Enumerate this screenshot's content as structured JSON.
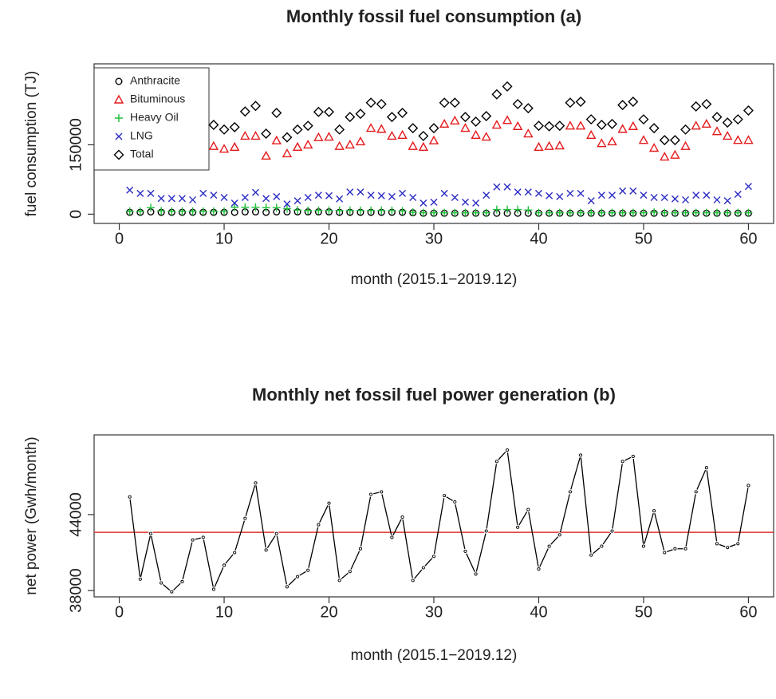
{
  "chart_data": [
    {
      "type": "scatter",
      "title": "Monthly fossil fuel consumption (a)",
      "x_label": "month (2015.1−2019.12)",
      "y_label": "fuel consumption (TJ)",
      "x": [
        1,
        2,
        3,
        4,
        5,
        6,
        7,
        8,
        9,
        10,
        11,
        12,
        13,
        14,
        15,
        16,
        17,
        18,
        19,
        20,
        21,
        22,
        23,
        24,
        25,
        26,
        27,
        28,
        29,
        30,
        31,
        32,
        33,
        34,
        35,
        36,
        37,
        38,
        39,
        40,
        41,
        42,
        43,
        44,
        45,
        46,
        47,
        48,
        49,
        50,
        51,
        52,
        53,
        54,
        55,
        56,
        57,
        58,
        59,
        60
      ],
      "xlim": [
        -2.4,
        62.4
      ],
      "xticks": [
        0,
        10,
        20,
        30,
        40,
        50,
        60
      ],
      "ylim": [
        -20000,
        325000
      ],
      "yticks": [
        0,
        150000
      ],
      "legend": "top-left",
      "series": [
        {
          "name": "Anthracite",
          "color": "#000000",
          "marker": "circle",
          "values": [
            4000,
            4000,
            5000,
            4000,
            4000,
            4000,
            4000,
            4000,
            4000,
            4000,
            4000,
            5000,
            5000,
            4000,
            5000,
            5000,
            5000,
            5000,
            5000,
            5000,
            4000,
            4000,
            4000,
            4000,
            4000,
            4000,
            4000,
            3000,
            2000,
            2000,
            2000,
            2000,
            2000,
            2000,
            2000,
            2000,
            2000,
            2000,
            2000,
            2000,
            2000,
            2000,
            2000,
            2000,
            2000,
            2000,
            2000,
            2000,
            2000,
            2000,
            2000,
            2000,
            2000,
            2000,
            2000,
            2000,
            2000,
            2000,
            2000,
            2000
          ]
        },
        {
          "name": "Bituminous",
          "color": "#e41a1c",
          "marker": "triangle",
          "values": [
            null,
            null,
            null,
            null,
            null,
            null,
            null,
            null,
            147000,
            141000,
            145000,
            169000,
            169000,
            126000,
            159000,
            131000,
            145000,
            150000,
            166000,
            167000,
            147000,
            150000,
            157000,
            186000,
            184000,
            169000,
            171000,
            147000,
            145000,
            159000,
            195000,
            202000,
            186000,
            171000,
            167000,
            193000,
            203000,
            190000,
            174000,
            145000,
            147000,
            148000,
            191000,
            191000,
            171000,
            153000,
            157000,
            184000,
            190000,
            160000,
            143000,
            124000,
            128000,
            147000,
            191000,
            195000,
            179000,
            169000,
            160000,
            160000
          ]
        },
        {
          "name": "Heavy Oil",
          "color": "#1fbf3a",
          "marker": "plus",
          "values": [
            6000,
            6000,
            14000,
            7000,
            6000,
            6000,
            6000,
            6000,
            6000,
            6000,
            15000,
            15000,
            15000,
            14000,
            14000,
            12000,
            9000,
            8000,
            8000,
            8000,
            8000,
            8000,
            8000,
            8000,
            8000,
            8000,
            7000,
            4000,
            3000,
            3000,
            3000,
            3000,
            3000,
            3000,
            3000,
            10000,
            10000,
            10000,
            9000,
            3000,
            3000,
            3000,
            3000,
            3000,
            3000,
            3000,
            3000,
            3000,
            3000,
            3000,
            4000,
            3000,
            3000,
            3000,
            3000,
            3000,
            3000,
            3000,
            3000,
            3000
          ]
        },
        {
          "name": "LNG",
          "color": "#2b2bc4",
          "marker": "x",
          "values": [
            52000,
            45000,
            45000,
            34000,
            34000,
            34000,
            31000,
            45000,
            41000,
            36000,
            24000,
            36000,
            47000,
            34000,
            38000,
            22000,
            29000,
            36000,
            41000,
            40000,
            33000,
            48000,
            48000,
            41000,
            40000,
            38000,
            45000,
            36000,
            24000,
            26000,
            45000,
            36000,
            26000,
            24000,
            41000,
            59000,
            59000,
            48000,
            48000,
            45000,
            40000,
            38000,
            45000,
            45000,
            29000,
            41000,
            41000,
            50000,
            50000,
            41000,
            36000,
            36000,
            33000,
            31000,
            41000,
            41000,
            31000,
            29000,
            43000,
            60000
          ]
        },
        {
          "name": "Total",
          "color": "#000000",
          "marker": "diamond",
          "values": [
            null,
            null,
            null,
            null,
            null,
            null,
            null,
            null,
            193000,
            183000,
            188000,
            222000,
            234000,
            174000,
            219000,
            166000,
            183000,
            191000,
            221000,
            221000,
            183000,
            210000,
            217000,
            241000,
            238000,
            210000,
            219000,
            186000,
            169000,
            186000,
            241000,
            241000,
            210000,
            200000,
            212000,
            259000,
            276000,
            238000,
            229000,
            191000,
            190000,
            191000,
            241000,
            243000,
            205000,
            193000,
            195000,
            236000,
            243000,
            205000,
            186000,
            160000,
            160000,
            183000,
            233000,
            238000,
            210000,
            198000,
            205000,
            224000
          ]
        }
      ]
    },
    {
      "type": "line",
      "title": "Monthly net fossil fuel power generation (b)",
      "x_label": "month (2015.1−2019.12)",
      "y_label": "net power (Gwh/month)",
      "x": [
        1,
        2,
        3,
        4,
        5,
        6,
        7,
        8,
        9,
        10,
        11,
        12,
        13,
        14,
        15,
        16,
        17,
        18,
        19,
        20,
        21,
        22,
        23,
        24,
        25,
        26,
        27,
        28,
        29,
        30,
        31,
        32,
        33,
        34,
        35,
        36,
        37,
        38,
        39,
        40,
        41,
        42,
        43,
        44,
        45,
        46,
        47,
        48,
        49,
        50,
        51,
        52,
        53,
        54,
        55,
        56,
        57,
        58,
        59,
        60
      ],
      "xlim": [
        -2.4,
        62.4
      ],
      "xticks": [
        0,
        10,
        20,
        30,
        40,
        50,
        60
      ],
      "ylim": [
        37500,
        50300
      ],
      "yticks": [
        38000,
        44000
      ],
      "reference_line": {
        "value": 42600,
        "color": "#e0322c"
      },
      "series": [
        {
          "color": "#000000",
          "values": [
            45400,
            38900,
            42500,
            38600,
            37900,
            38700,
            42000,
            42200,
            38100,
            40000,
            41000,
            43700,
            46500,
            41200,
            42500,
            38300,
            39100,
            39600,
            43200,
            44900,
            38800,
            39500,
            41300,
            45600,
            45800,
            42200,
            43800,
            38800,
            39800,
            40700,
            45500,
            45000,
            41100,
            39300,
            42700,
            48200,
            49100,
            43000,
            44400,
            39700,
            41500,
            42400,
            45800,
            48700,
            40800,
            41500,
            42700,
            48200,
            48600,
            41500,
            44300,
            41000,
            41300,
            41300,
            45800,
            47700,
            41700,
            41400,
            41700,
            46300
          ]
        }
      ]
    }
  ]
}
